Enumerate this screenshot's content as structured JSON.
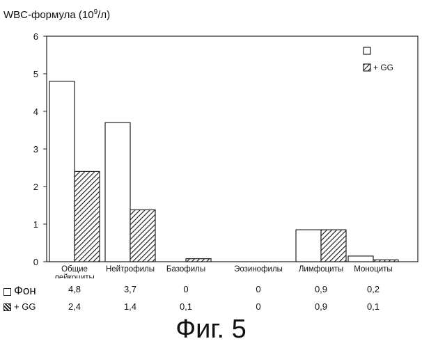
{
  "chart_data": {
    "type": "bar",
    "title": "WBC-формула (10⁹/л)",
    "ylabel_main": "WBC-формула (10",
    "ylabel_sup": "9",
    "ylabel_tail": "/л)",
    "ylim": [
      0,
      6
    ],
    "yticks": [
      "0",
      "1",
      "2",
      "3",
      "4",
      "5",
      "6"
    ],
    "categories": [
      "Общие лейкоциты",
      "Нейтрофилы",
      "Базофилы",
      "Эозинофилы",
      "Лимфоциты",
      "Моноциты"
    ],
    "series": [
      {
        "name": "Фон",
        "values": [
          4.8,
          3.7,
          0,
          0,
          0.85,
          0.15
        ],
        "pattern": "plain"
      },
      {
        "name": "+ GG",
        "values": [
          2.4,
          1.38,
          0.08,
          0,
          0.85,
          0.05
        ],
        "pattern": "hatched"
      }
    ],
    "legend": {
      "entry1": "",
      "entry2": "+ GG",
      "placement": "top-right"
    },
    "table": {
      "row1": {
        "label": "Фон",
        "values": [
          "4,8",
          "3,7",
          "0",
          "0",
          "0,9",
          "0,2"
        ]
      },
      "row2": {
        "label": "+ GG",
        "values": [
          "2,4",
          "1,4",
          "0,1",
          "0",
          "0,9",
          "0,1"
        ]
      }
    },
    "figure_caption": "Фиг. 5"
  }
}
